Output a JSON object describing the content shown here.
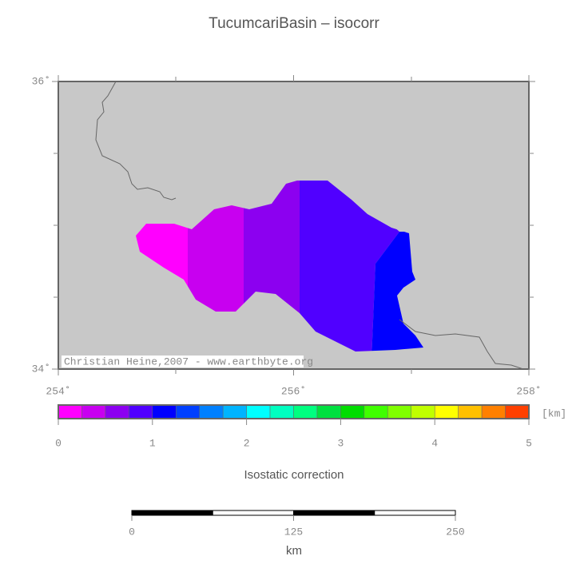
{
  "title": "TucumcariBasin – isocorr",
  "map": {
    "xlim": [
      254,
      258
    ],
    "ylim": [
      34,
      36
    ],
    "xticks": [
      {
        "value": 254,
        "label": "254˚"
      },
      {
        "value": 256,
        "label": "256˚"
      },
      {
        "value": 258,
        "label": "258˚"
      }
    ],
    "yticks": [
      {
        "value": 34,
        "label": "34˚"
      },
      {
        "value": 36,
        "label": "36˚"
      }
    ],
    "credit": "Christian Heine,2007 - www.earthbyte.org"
  },
  "colorbar": {
    "lim": [
      0,
      5
    ],
    "ticks": [
      0,
      1,
      2,
      3,
      4,
      5
    ],
    "unit": "[km]",
    "label": "Isostatic correction",
    "colors": [
      "#ff00ff",
      "#c800f0",
      "#8c00f0",
      "#5000ff",
      "#0000ff",
      "#0040ff",
      "#0080ff",
      "#00b4ff",
      "#00ffff",
      "#00ffc0",
      "#00ff80",
      "#00e040",
      "#00dd00",
      "#40ff00",
      "#80ff00",
      "#c0ff00",
      "#ffff00",
      "#ffc000",
      "#ff8000",
      "#ff4000"
    ]
  },
  "scalebar": {
    "lim": [
      0,
      250
    ],
    "ticks": [
      0,
      125,
      250
    ],
    "unit": "km"
  }
}
